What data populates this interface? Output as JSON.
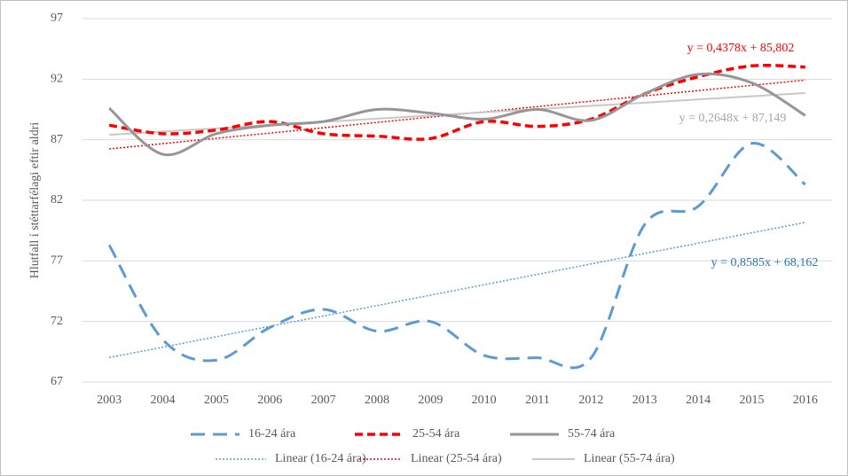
{
  "chart_data": {
    "type": "line",
    "y_label": "Hlutfall í stéttarfélagi eftir aldri",
    "categories": [
      "2003",
      "2004",
      "2005",
      "2006",
      "2007",
      "2008",
      "2009",
      "2010",
      "2011",
      "2012",
      "2013",
      "2014",
      "2015",
      "2016"
    ],
    "ylim": [
      67,
      97
    ],
    "yticks": [
      67,
      72,
      77,
      82,
      87,
      92,
      97
    ],
    "grid": true,
    "smooth": true,
    "series": [
      {
        "name": "16-24 ára",
        "color": "#5b9bd5",
        "line_style": "dashed",
        "values": [
          78.3,
          70.5,
          68.8,
          71.5,
          73.0,
          71.2,
          72.0,
          69.2,
          69.0,
          69.0,
          80.0,
          81.5,
          86.7,
          83.3
        ]
      },
      {
        "name": "25-54 ára",
        "color": "#ff0000",
        "line_style": "dashed",
        "values": [
          88.2,
          87.5,
          87.8,
          88.5,
          87.5,
          87.3,
          87.1,
          88.5,
          88.1,
          88.7,
          90.8,
          92.2,
          93.1,
          93.0
        ]
      },
      {
        "name": "55-74 ára",
        "color": "#969696",
        "line_style": "solid",
        "values": [
          89.6,
          85.8,
          87.5,
          88.2,
          88.5,
          89.5,
          89.2,
          88.7,
          89.5,
          88.6,
          90.8,
          92.4,
          91.7,
          89.0
        ]
      },
      {
        "name": "Linear (16-24 ára)",
        "color": "#5b9bd5",
        "line_style": "dotted",
        "values": [
          69.02,
          69.88,
          70.74,
          71.6,
          72.45,
          73.31,
          74.17,
          75.03,
          75.89,
          76.75,
          77.61,
          78.46,
          79.32,
          80.18
        ]
      },
      {
        "name": "Linear (25-54 ára)",
        "color": "#ff0000",
        "line_style": "dotted",
        "values": [
          86.24,
          86.68,
          87.12,
          87.55,
          87.99,
          88.43,
          88.87,
          89.3,
          89.74,
          90.18,
          90.62,
          91.06,
          91.49,
          91.93
        ]
      },
      {
        "name": "Linear (55-74 ára)",
        "color": "#c8c8c8",
        "line_style": "solid",
        "values": [
          87.41,
          87.68,
          87.94,
          88.21,
          88.47,
          88.74,
          89.0,
          89.27,
          89.53,
          89.8,
          90.06,
          90.33,
          90.59,
          90.86
        ]
      }
    ],
    "annotations": [
      {
        "text": "y = 0,4378x + 85,802",
        "color": "#ff0000"
      },
      {
        "text": "y = 0,2648x + 87,149",
        "color": "#a6a6a6"
      },
      {
        "text": "y = 0,8585x + 68,162",
        "color": "#2e75b6"
      }
    ]
  }
}
